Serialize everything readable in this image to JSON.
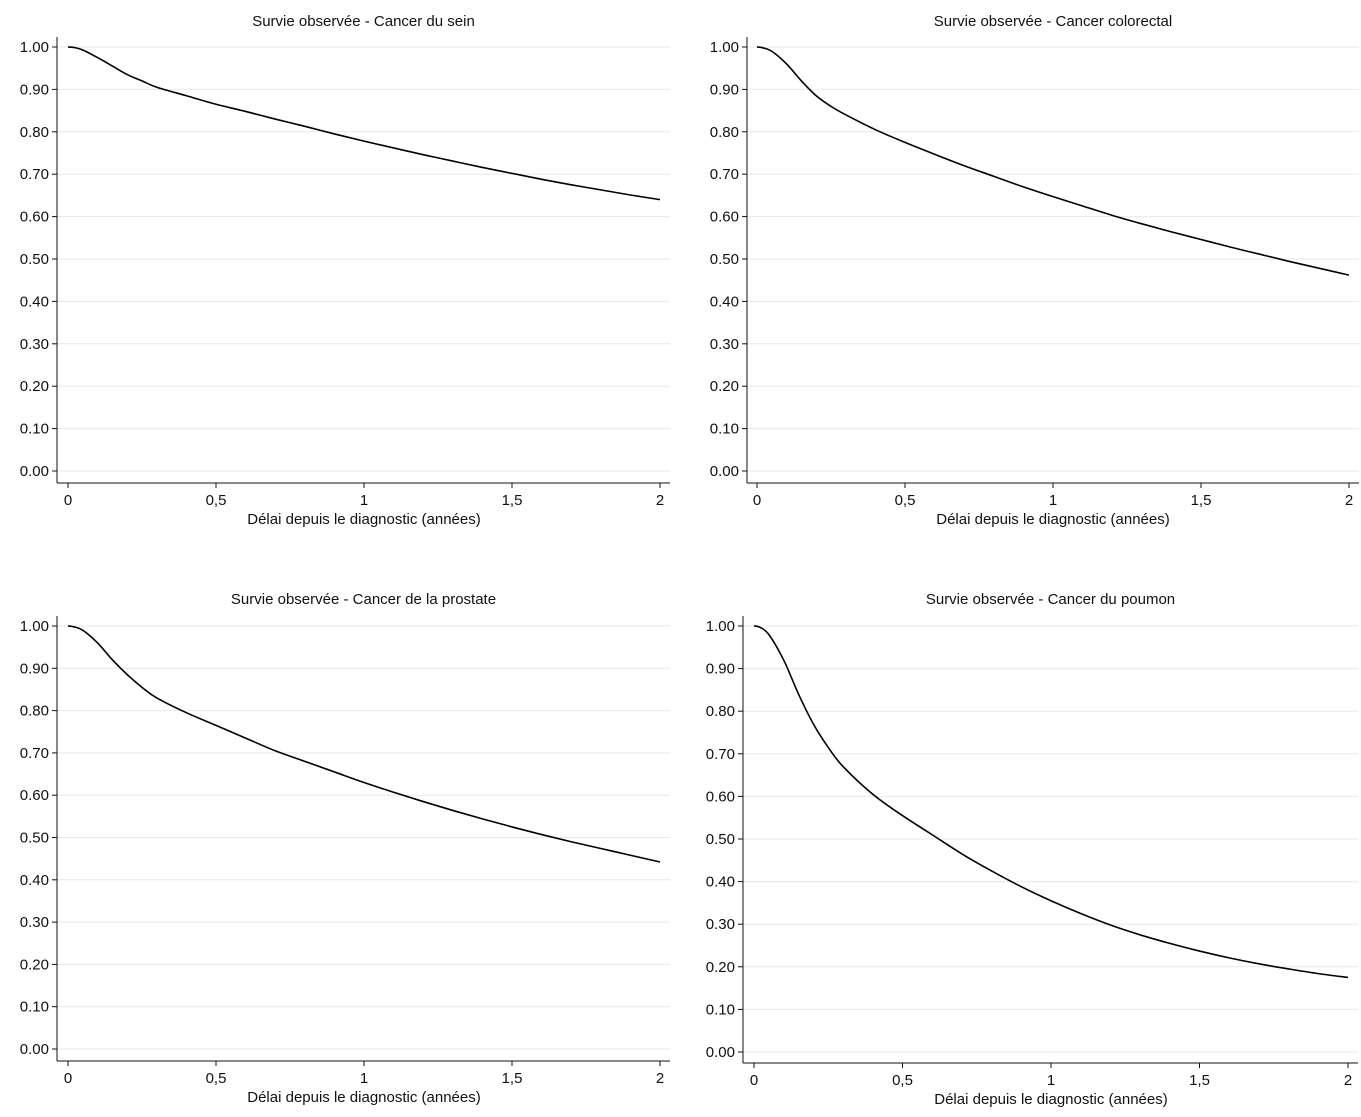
{
  "chart_data": [
    {
      "type": "line",
      "title": "Survie observée - Cancer du sein",
      "xlabel": "Délai depuis le diagnostic (années)",
      "ylabel": "",
      "xlim": [
        0,
        2
      ],
      "ylim": [
        0,
        1
      ],
      "x_ticks": [
        0,
        0.5,
        1,
        1.5,
        2
      ],
      "x_tick_labels": [
        "0",
        "0,5",
        "1",
        "1,5",
        "2"
      ],
      "y_ticks": [
        0,
        0.1,
        0.2,
        0.3,
        0.4,
        0.5,
        0.6,
        0.7,
        0.8,
        0.9,
        1.0
      ],
      "y_tick_labels": [
        "0.00",
        "0.10",
        "0.20",
        "0.30",
        "0.40",
        "0.50",
        "0.60",
        "0.70",
        "0.80",
        "0.90",
        "1.00"
      ],
      "grid": true,
      "series": [
        {
          "color": "#000000",
          "x": [
            0,
            0.02,
            0.05,
            0.1,
            0.15,
            0.2,
            0.25,
            0.3,
            0.4,
            0.5,
            0.6,
            0.7,
            0.8,
            0.9,
            1.0,
            1.1,
            1.2,
            1.3,
            1.4,
            1.5,
            1.6,
            1.7,
            1.8,
            1.9,
            2.0
          ],
          "y": [
            1.0,
            0.999,
            0.993,
            0.975,
            0.955,
            0.935,
            0.92,
            0.905,
            0.885,
            0.865,
            0.848,
            0.83,
            0.813,
            0.795,
            0.778,
            0.762,
            0.746,
            0.731,
            0.716,
            0.702,
            0.688,
            0.675,
            0.663,
            0.651,
            0.64
          ]
        }
      ]
    },
    {
      "type": "line",
      "title": "Survie observée - Cancer colorectal",
      "xlabel": "Délai depuis le diagnostic (années)",
      "ylabel": "",
      "xlim": [
        0,
        2
      ],
      "ylim": [
        0,
        1
      ],
      "x_ticks": [
        0,
        0.5,
        1,
        1.5,
        2
      ],
      "x_tick_labels": [
        "0",
        "0,5",
        "1",
        "1,5",
        "2"
      ],
      "y_ticks": [
        0,
        0.1,
        0.2,
        0.3,
        0.4,
        0.5,
        0.6,
        0.7,
        0.8,
        0.9,
        1.0
      ],
      "y_tick_labels": [
        "0.00",
        "0.10",
        "0.20",
        "0.30",
        "0.40",
        "0.50",
        "0.60",
        "0.70",
        "0.80",
        "0.90",
        "1.00"
      ],
      "grid": true,
      "series": [
        {
          "color": "#000000",
          "x": [
            0,
            0.02,
            0.05,
            0.1,
            0.15,
            0.2,
            0.25,
            0.3,
            0.4,
            0.5,
            0.6,
            0.7,
            0.8,
            0.9,
            1.0,
            1.1,
            1.2,
            1.3,
            1.4,
            1.5,
            1.6,
            1.7,
            1.8,
            1.9,
            2.0
          ],
          "y": [
            1.0,
            0.998,
            0.99,
            0.96,
            0.92,
            0.885,
            0.86,
            0.84,
            0.805,
            0.775,
            0.747,
            0.72,
            0.695,
            0.67,
            0.647,
            0.625,
            0.603,
            0.583,
            0.564,
            0.546,
            0.528,
            0.511,
            0.494,
            0.478,
            0.462
          ]
        }
      ]
    },
    {
      "type": "line",
      "title": "Survie observée - Cancer de la prostate",
      "xlabel": "Délai depuis le diagnostic (années)",
      "ylabel": "",
      "xlim": [
        0,
        2
      ],
      "ylim": [
        0,
        1
      ],
      "x_ticks": [
        0,
        0.5,
        1,
        1.5,
        2
      ],
      "x_tick_labels": [
        "0",
        "0,5",
        "1",
        "1,5",
        "2"
      ],
      "y_ticks": [
        0,
        0.1,
        0.2,
        0.3,
        0.4,
        0.5,
        0.6,
        0.7,
        0.8,
        0.9,
        1.0
      ],
      "y_tick_labels": [
        "0.00",
        "0.10",
        "0.20",
        "0.30",
        "0.40",
        "0.50",
        "0.60",
        "0.70",
        "0.80",
        "0.90",
        "1.00"
      ],
      "grid": true,
      "series": [
        {
          "color": "#000000",
          "x": [
            0,
            0.02,
            0.05,
            0.1,
            0.15,
            0.2,
            0.25,
            0.3,
            0.4,
            0.5,
            0.6,
            0.7,
            0.8,
            0.9,
            1.0,
            1.1,
            1.2,
            1.3,
            1.4,
            1.5,
            1.6,
            1.7,
            1.8,
            1.9,
            2.0
          ],
          "y": [
            1.0,
            0.998,
            0.99,
            0.96,
            0.92,
            0.885,
            0.855,
            0.83,
            0.795,
            0.765,
            0.735,
            0.705,
            0.68,
            0.655,
            0.63,
            0.607,
            0.585,
            0.564,
            0.544,
            0.525,
            0.507,
            0.49,
            0.474,
            0.458,
            0.442
          ]
        }
      ]
    },
    {
      "type": "line",
      "title": "Survie observée - Cancer du poumon",
      "xlabel": "Délai depuis le diagnostic (années)",
      "ylabel": "",
      "xlim": [
        0,
        2
      ],
      "ylim": [
        0,
        1
      ],
      "x_ticks": [
        0,
        0.5,
        1,
        1.5,
        2
      ],
      "x_tick_labels": [
        "0",
        "0,5",
        "1",
        "1,5",
        "2"
      ],
      "y_ticks": [
        0,
        0.1,
        0.2,
        0.3,
        0.4,
        0.5,
        0.6,
        0.7,
        0.8,
        0.9,
        1.0
      ],
      "y_tick_labels": [
        "0.00",
        "0.10",
        "0.20",
        "0.30",
        "0.40",
        "0.50",
        "0.60",
        "0.70",
        "0.80",
        "0.90",
        "1.00"
      ],
      "grid": true,
      "series": [
        {
          "color": "#000000",
          "x": [
            0,
            0.02,
            0.05,
            0.1,
            0.15,
            0.2,
            0.25,
            0.3,
            0.4,
            0.5,
            0.6,
            0.7,
            0.8,
            0.9,
            1.0,
            1.1,
            1.2,
            1.3,
            1.4,
            1.5,
            1.6,
            1.7,
            1.8,
            1.9,
            2.0
          ],
          "y": [
            1.0,
            0.997,
            0.98,
            0.92,
            0.84,
            0.77,
            0.715,
            0.67,
            0.605,
            0.555,
            0.51,
            0.465,
            0.425,
            0.388,
            0.355,
            0.325,
            0.298,
            0.275,
            0.255,
            0.237,
            0.221,
            0.207,
            0.195,
            0.184,
            0.175
          ]
        }
      ]
    }
  ]
}
